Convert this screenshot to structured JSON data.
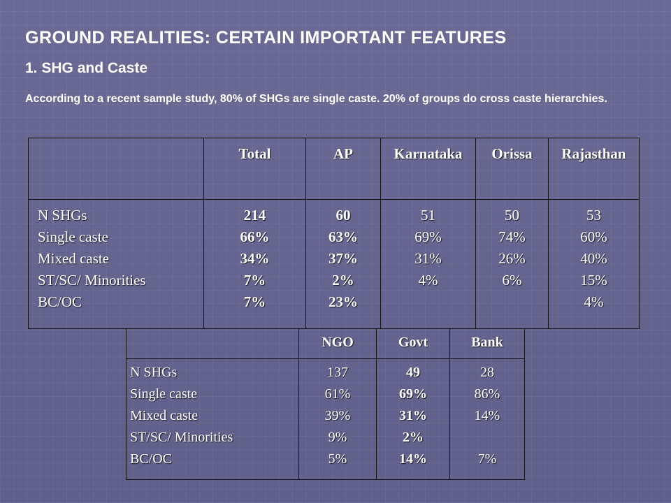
{
  "title": "GROUND REALITIES: CERTAIN IMPORTANT FEATURES",
  "subtitle": "1. SHG and Caste",
  "intro": "According to a recent sample study, 80% of SHGs are single caste. 20% of groups do cross caste hierarchies.",
  "table1": {
    "headers": [
      "",
      "Total",
      "AP",
      "Karnataka",
      "Orissa",
      "Rajasthan"
    ],
    "row_labels": [
      "N SHGs",
      "Single caste",
      "Mixed caste",
      "ST/SC/ Minorities",
      "BC/OC"
    ],
    "columns": [
      [
        "214",
        "66%",
        "34%",
        "7%",
        "7%"
      ],
      [
        "60",
        "63%",
        "37%",
        "2%",
        "23%"
      ],
      [
        "51",
        "69%",
        "31%",
        "4%",
        ""
      ],
      [
        "50",
        "74%",
        "26%",
        "6%",
        ""
      ],
      [
        "53",
        "60%",
        "40%",
        "15%",
        "4%"
      ]
    ]
  },
  "table2": {
    "headers": [
      "",
      "NGO",
      "Govt",
      "Bank"
    ],
    "row_labels": [
      "N SHGs",
      "Single caste",
      "Mixed caste",
      "ST/SC/ Minorities",
      "BC/OC"
    ],
    "columns": [
      [
        "137",
        "61%",
        "39%",
        "9%",
        "5%"
      ],
      [
        "49",
        "69%",
        "31%",
        "2%",
        "14%"
      ],
      [
        "28",
        "86%",
        "14%",
        "",
        "7%"
      ]
    ]
  },
  "colors": {
    "background": "#65658f",
    "text": "#ffffff",
    "table_border": "#141414"
  }
}
